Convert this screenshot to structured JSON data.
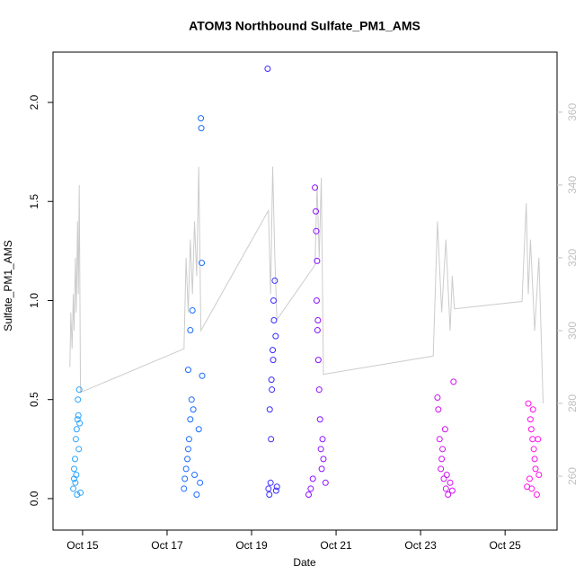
{
  "chart_data": {
    "type": "scatter",
    "title": "ATOM3 Northbound Sulfate_PM1_AMS",
    "xlabel": "Date",
    "ylabel": "Sulfate_PM1_AMS",
    "xlim": [
      14.3,
      26.23
    ],
    "ylim": [
      -0.159,
      2.254
    ],
    "y2lim": [
      245.2,
      376.5
    ],
    "xticks": [
      {
        "value": 15,
        "label": "Oct 15"
      },
      {
        "value": 17,
        "label": "Oct 17"
      },
      {
        "value": 19,
        "label": "Oct 19"
      },
      {
        "value": 21,
        "label": "Oct 21"
      },
      {
        "value": 23,
        "label": "Oct 23"
      },
      {
        "value": 25,
        "label": "Oct 25"
      }
    ],
    "yticks": [
      {
        "value": 0,
        "label": "0.0"
      },
      0.5,
      {
        "value": 1,
        "label": "1.0"
      },
      1.5,
      {
        "value": 2,
        "label": "2.0"
      }
    ],
    "y2ticks": [
      260,
      280,
      300,
      320,
      340,
      360
    ],
    "y2tick_color": "#c0c0c0",
    "series": [
      {
        "color": "#cccccc",
        "axis": "y2",
        "kind": "line",
        "x": [
          14.7,
          14.72,
          14.75,
          14.78,
          14.8,
          14.83,
          14.85,
          14.88,
          14.9,
          14.92,
          14.95,
          17.4,
          17.45,
          17.5,
          17.55,
          17.6,
          17.65,
          17.7,
          17.75,
          17.8,
          19.4,
          19.45,
          19.5,
          19.55,
          19.6,
          20.5,
          20.55,
          20.6,
          20.65,
          20.7,
          23.3,
          23.4,
          23.5,
          23.6,
          23.7,
          23.75,
          23.8,
          25.4,
          25.5,
          25.55,
          25.6,
          25.7,
          25.8,
          25.9
        ],
        "values": [
          290,
          305,
          295,
          310,
          300,
          320,
          305,
          330,
          310,
          340,
          283,
          295,
          320,
          305,
          325,
          310,
          330,
          315,
          345,
          300,
          333,
          310,
          345,
          320,
          303,
          318,
          340,
          320,
          342,
          288,
          293,
          330,
          305,
          325,
          300,
          315,
          306,
          308,
          335,
          310,
          325,
          300,
          320,
          280
        ]
      },
      {
        "color": "#29a3ff",
        "kind": "points",
        "x": [
          14.78,
          14.8,
          14.82,
          14.84,
          14.86,
          14.88,
          14.9,
          14.8,
          14.83,
          14.87,
          14.91,
          14.93,
          14.92,
          14.89,
          14.85,
          14.95
        ],
        "values": [
          0.05,
          0.1,
          0.2,
          0.3,
          0.35,
          0.4,
          0.42,
          0.15,
          0.08,
          0.02,
          0.25,
          0.38,
          0.55,
          0.5,
          0.12,
          0.03
        ]
      },
      {
        "color": "#1a6cff",
        "kind": "points",
        "x": [
          17.4,
          17.42,
          17.45,
          17.48,
          17.5,
          17.52,
          17.55,
          17.58,
          17.5,
          17.55,
          17.6,
          17.62,
          17.65,
          17.7,
          17.8,
          17.81,
          17.82,
          17.83,
          17.75,
          17.78
        ],
        "values": [
          0.05,
          0.1,
          0.15,
          0.2,
          0.25,
          0.3,
          0.4,
          0.5,
          0.65,
          0.85,
          0.95,
          0.45,
          0.12,
          0.02,
          1.92,
          1.87,
          1.19,
          0.62,
          0.35,
          0.08
        ]
      },
      {
        "color": "#3a2bff",
        "kind": "points",
        "x": [
          19.38,
          19.4,
          19.42,
          19.45,
          19.47,
          19.5,
          19.52,
          19.55,
          19.43,
          19.46,
          19.48,
          19.53,
          19.58,
          19.6,
          19.57,
          19.51
        ],
        "values": [
          2.17,
          0.05,
          0.02,
          0.08,
          0.6,
          0.75,
          1.0,
          1.1,
          0.45,
          0.3,
          0.55,
          0.9,
          0.04,
          0.06,
          0.82,
          0.7
        ]
      },
      {
        "color": "#8a10ff",
        "kind": "points",
        "x": [
          20.5,
          20.52,
          20.53,
          20.55,
          20.54,
          20.56,
          20.58,
          20.6,
          20.62,
          20.64,
          20.66,
          20.4,
          20.35,
          20.45,
          20.7,
          20.75,
          20.68,
          20.57
        ],
        "values": [
          1.57,
          1.45,
          1.35,
          1.2,
          1.0,
          0.85,
          0.7,
          0.55,
          0.4,
          0.25,
          0.15,
          0.05,
          0.02,
          0.1,
          0.2,
          0.08,
          0.3,
          0.9
        ]
      },
      {
        "color": "#d010f0",
        "kind": "points",
        "x": [
          23.4,
          23.42,
          23.45,
          23.5,
          23.55,
          23.6,
          23.65,
          23.48,
          23.52,
          23.7,
          23.78,
          23.58,
          23.62,
          23.75
        ],
        "values": [
          0.51,
          0.45,
          0.3,
          0.2,
          0.1,
          0.05,
          0.02,
          0.15,
          0.25,
          0.08,
          0.59,
          0.35,
          0.12,
          0.04
        ]
      },
      {
        "color": "#ff10e8",
        "kind": "points",
        "x": [
          25.55,
          25.6,
          25.62,
          25.65,
          25.68,
          25.7,
          25.72,
          25.58,
          25.63,
          25.75,
          25.78,
          25.66,
          25.8,
          25.52
        ],
        "values": [
          0.48,
          0.4,
          0.35,
          0.3,
          0.25,
          0.2,
          0.15,
          0.1,
          0.05,
          0.02,
          0.3,
          0.45,
          0.12,
          0.06
        ]
      }
    ]
  }
}
